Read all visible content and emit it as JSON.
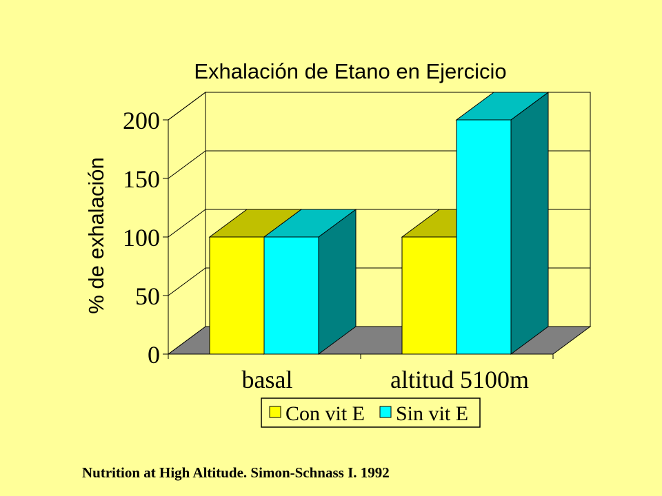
{
  "chart_data": {
    "type": "bar",
    "title": "Exhalación de Etano en Ejercicio",
    "xlabel": "",
    "ylabel": "% de exhalación",
    "categories": [
      "basal",
      "altitud 5100m"
    ],
    "series": [
      {
        "name": "Con vit E",
        "values": [
          100,
          100
        ]
      },
      {
        "name": "Sin vit E",
        "values": [
          100,
          200
        ]
      }
    ],
    "ylim": [
      0,
      200
    ],
    "yticks": [
      0,
      50,
      100,
      150,
      200
    ],
    "grid": true,
    "legend": "bottom",
    "three_d": true,
    "colors": {
      "background": "#FFFF99",
      "con_front": "#FFFF00",
      "con_top": "#C0C000",
      "con_side": "#808000",
      "sin_front": "#00FFFF",
      "sin_top": "#00C0C0",
      "sin_side": "#008080",
      "floor": "#808080"
    }
  },
  "source": "Nutrition at High Altitude. Simon-Schnass I. 1992"
}
